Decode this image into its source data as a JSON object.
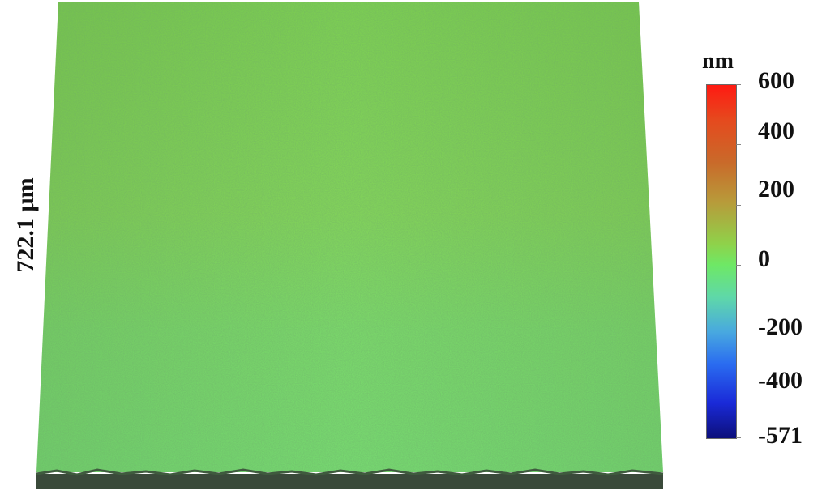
{
  "image": {
    "description_label": "",
    "axis_label": "722.1 µm",
    "colorbar": {
      "unit": "nm",
      "ticks": [
        {
          "value": 600,
          "label": "600"
        },
        {
          "value": 400,
          "label": "400"
        },
        {
          "value": 200,
          "label": "200"
        },
        {
          "value": 0,
          "label": "0"
        },
        {
          "value": -200,
          "label": "-200"
        },
        {
          "value": -400,
          "label": "-400"
        },
        {
          "value": -571,
          "label": "-571"
        }
      ],
      "range": [
        -571,
        600
      ],
      "colors": {
        "max": "#ff1a12",
        "mid": "#6ee866",
        "min": "#0c0f7a"
      }
    },
    "surface_color": "#7ed85a"
  }
}
